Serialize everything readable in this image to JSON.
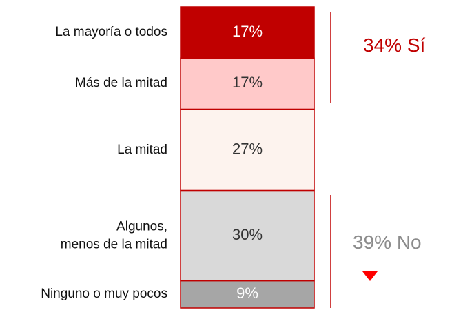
{
  "chart_data": {
    "type": "stacked-column",
    "categories": [
      "La mayoría o todos",
      "Más de la mitad",
      "La mitad",
      "Algunos,\nmenos de la mitad",
      "Ninguno o muy pocos"
    ],
    "values": [
      17,
      17,
      27,
      30,
      9
    ],
    "value_labels": [
      "17%",
      "17%",
      "27%",
      "30%",
      "9%"
    ],
    "colors": [
      "#c00000",
      "#ffc9c9",
      "#fdf3ee",
      "#d9d9d9",
      "#a6a6a6"
    ],
    "ylim": [
      0,
      100
    ],
    "annotations": [
      "34% Sí",
      "39% No"
    ]
  }
}
